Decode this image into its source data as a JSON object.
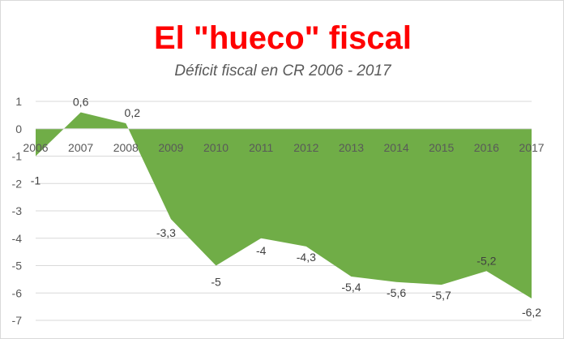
{
  "chart_data": {
    "type": "area",
    "title": "El \"hueco\" fiscal",
    "subtitle": "Déficit fiscal en CR 2006 - 2017",
    "xlabel": "",
    "ylabel": "",
    "categories": [
      "2006",
      "2007",
      "2008",
      "2009",
      "2010",
      "2011",
      "2012",
      "2013",
      "2014",
      "2015",
      "2016",
      "2017"
    ],
    "values": [
      -1,
      0.6,
      0.2,
      -3.3,
      -5,
      -4,
      -4.3,
      -5.4,
      -5.6,
      -5.7,
      -5.2,
      -6.2
    ],
    "data_labels": [
      "-1",
      "0,6",
      "0,2",
      "-3,3",
      "-5",
      "-4",
      "-4,3",
      "-5,4",
      "-5,6",
      "-5,7",
      "-5,2",
      "-6,2"
    ],
    "ylim": [
      -7,
      1
    ],
    "yticks": [
      1,
      0,
      -1,
      -2,
      -3,
      -4,
      -5,
      -6,
      -7
    ],
    "grid": true,
    "legend": "none",
    "colors": {
      "fill": "#70ad47",
      "grid": "#d9d9d9",
      "title": "#ff0000"
    }
  }
}
